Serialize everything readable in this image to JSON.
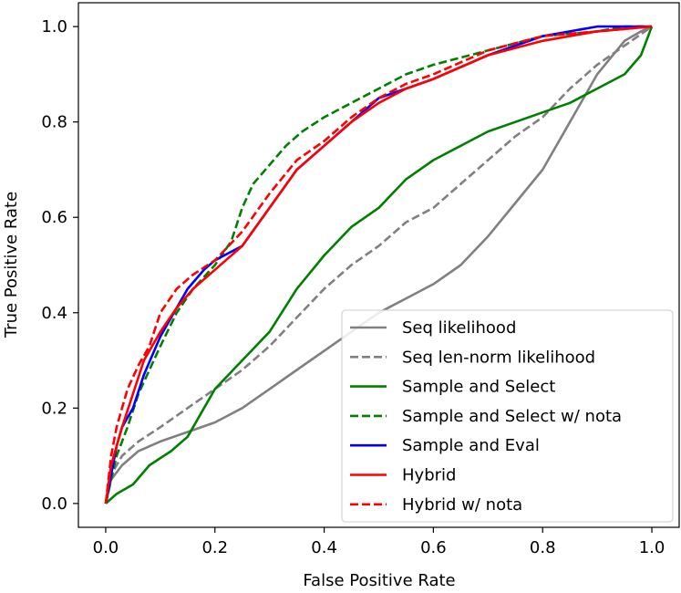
{
  "chart_data": {
    "type": "line",
    "title": "",
    "xlabel": "False Positive Rate",
    "ylabel": "True Positive Rate",
    "xlim": [
      -0.05,
      1.05
    ],
    "ylim": [
      -0.05,
      1.05
    ],
    "xticks": [
      0.0,
      0.2,
      0.4,
      0.6,
      0.8,
      1.0
    ],
    "yticks": [
      0.0,
      0.2,
      0.4,
      0.6,
      0.8,
      1.0
    ],
    "xtick_labels": [
      "0.0",
      "0.2",
      "0.4",
      "0.6",
      "0.8",
      "1.0"
    ],
    "ytick_labels": [
      "0.0",
      "0.2",
      "0.4",
      "0.6",
      "0.8",
      "1.0"
    ],
    "grid": false,
    "legend_position": "bottom-right",
    "series": [
      {
        "name": "Seq likelihood",
        "color": "#808080",
        "dash": "solid",
        "x": [
          0,
          0.01,
          0.03,
          0.06,
          0.1,
          0.15,
          0.2,
          0.25,
          0.3,
          0.35,
          0.4,
          0.45,
          0.5,
          0.55,
          0.6,
          0.65,
          0.7,
          0.75,
          0.8,
          0.85,
          0.9,
          0.95,
          0.98,
          1.0
        ],
        "y": [
          0,
          0.05,
          0.08,
          0.11,
          0.13,
          0.15,
          0.17,
          0.2,
          0.24,
          0.28,
          0.32,
          0.36,
          0.4,
          0.43,
          0.46,
          0.5,
          0.56,
          0.63,
          0.7,
          0.8,
          0.9,
          0.97,
          0.99,
          1.0
        ]
      },
      {
        "name": "Seq len-norm likelihood",
        "color": "#808080",
        "dash": "dashed",
        "x": [
          0,
          0.01,
          0.03,
          0.06,
          0.1,
          0.15,
          0.2,
          0.25,
          0.3,
          0.35,
          0.4,
          0.45,
          0.5,
          0.55,
          0.6,
          0.65,
          0.7,
          0.75,
          0.8,
          0.85,
          0.9,
          0.95,
          1.0
        ],
        "y": [
          0,
          0.06,
          0.1,
          0.13,
          0.16,
          0.2,
          0.24,
          0.28,
          0.33,
          0.39,
          0.45,
          0.5,
          0.54,
          0.59,
          0.62,
          0.67,
          0.72,
          0.77,
          0.81,
          0.87,
          0.92,
          0.96,
          1.0
        ]
      },
      {
        "name": "Sample and Select",
        "color": "#008000",
        "dash": "solid",
        "x": [
          0,
          0.02,
          0.05,
          0.08,
          0.12,
          0.15,
          0.18,
          0.2,
          0.25,
          0.3,
          0.35,
          0.4,
          0.45,
          0.5,
          0.55,
          0.6,
          0.65,
          0.7,
          0.75,
          0.8,
          0.85,
          0.9,
          0.95,
          0.98,
          1.0
        ],
        "y": [
          0,
          0.02,
          0.04,
          0.08,
          0.11,
          0.14,
          0.2,
          0.24,
          0.3,
          0.36,
          0.45,
          0.52,
          0.58,
          0.62,
          0.68,
          0.72,
          0.75,
          0.78,
          0.8,
          0.82,
          0.84,
          0.87,
          0.9,
          0.94,
          1.0
        ]
      },
      {
        "name": "Sample and Select w/ nota",
        "color": "#008000",
        "dash": "dashed",
        "x": [
          0,
          0.01,
          0.02,
          0.04,
          0.06,
          0.08,
          0.1,
          0.13,
          0.16,
          0.2,
          0.23,
          0.25,
          0.27,
          0.3,
          0.33,
          0.36,
          0.4,
          0.45,
          0.5,
          0.55,
          0.6,
          0.7,
          0.8,
          0.9,
          0.95,
          1.0
        ],
        "y": [
          0,
          0.05,
          0.1,
          0.16,
          0.23,
          0.28,
          0.33,
          0.4,
          0.45,
          0.5,
          0.55,
          0.62,
          0.67,
          0.71,
          0.75,
          0.78,
          0.81,
          0.84,
          0.87,
          0.9,
          0.92,
          0.95,
          0.98,
          0.99,
          1.0,
          1.0
        ]
      },
      {
        "name": "Sample and Eval",
        "color": "#0000ff",
        "dash": "solid",
        "x": [
          0,
          0.01,
          0.02,
          0.03,
          0.05,
          0.07,
          0.1,
          0.13,
          0.15,
          0.18,
          0.2,
          0.25,
          0.3,
          0.35,
          0.4,
          0.45,
          0.5,
          0.55,
          0.6,
          0.7,
          0.8,
          0.9,
          1.0
        ],
        "y": [
          0,
          0.06,
          0.12,
          0.16,
          0.2,
          0.27,
          0.35,
          0.41,
          0.45,
          0.49,
          0.51,
          0.54,
          0.62,
          0.7,
          0.75,
          0.8,
          0.85,
          0.87,
          0.89,
          0.94,
          0.98,
          1.0,
          1.0
        ]
      },
      {
        "name": "Hybrid",
        "color": "#ff0000",
        "dash": "solid",
        "x": [
          0,
          0.01,
          0.03,
          0.05,
          0.07,
          0.1,
          0.13,
          0.16,
          0.2,
          0.25,
          0.3,
          0.35,
          0.4,
          0.45,
          0.5,
          0.55,
          0.6,
          0.7,
          0.8,
          0.9,
          1.0
        ],
        "y": [
          0,
          0.08,
          0.16,
          0.23,
          0.3,
          0.36,
          0.41,
          0.45,
          0.49,
          0.54,
          0.62,
          0.7,
          0.75,
          0.8,
          0.84,
          0.87,
          0.89,
          0.94,
          0.97,
          0.99,
          1.0
        ]
      },
      {
        "name": "Hybrid w/ nota",
        "color": "#ff0000",
        "dash": "dashed",
        "x": [
          0,
          0.01,
          0.02,
          0.04,
          0.06,
          0.08,
          0.1,
          0.13,
          0.16,
          0.2,
          0.25,
          0.3,
          0.35,
          0.4,
          0.45,
          0.5,
          0.55,
          0.6,
          0.7,
          0.8,
          0.9,
          1.0
        ],
        "y": [
          0,
          0.1,
          0.16,
          0.24,
          0.29,
          0.33,
          0.4,
          0.45,
          0.48,
          0.51,
          0.57,
          0.65,
          0.72,
          0.76,
          0.81,
          0.85,
          0.88,
          0.9,
          0.95,
          0.98,
          0.99,
          1.0
        ]
      }
    ]
  }
}
